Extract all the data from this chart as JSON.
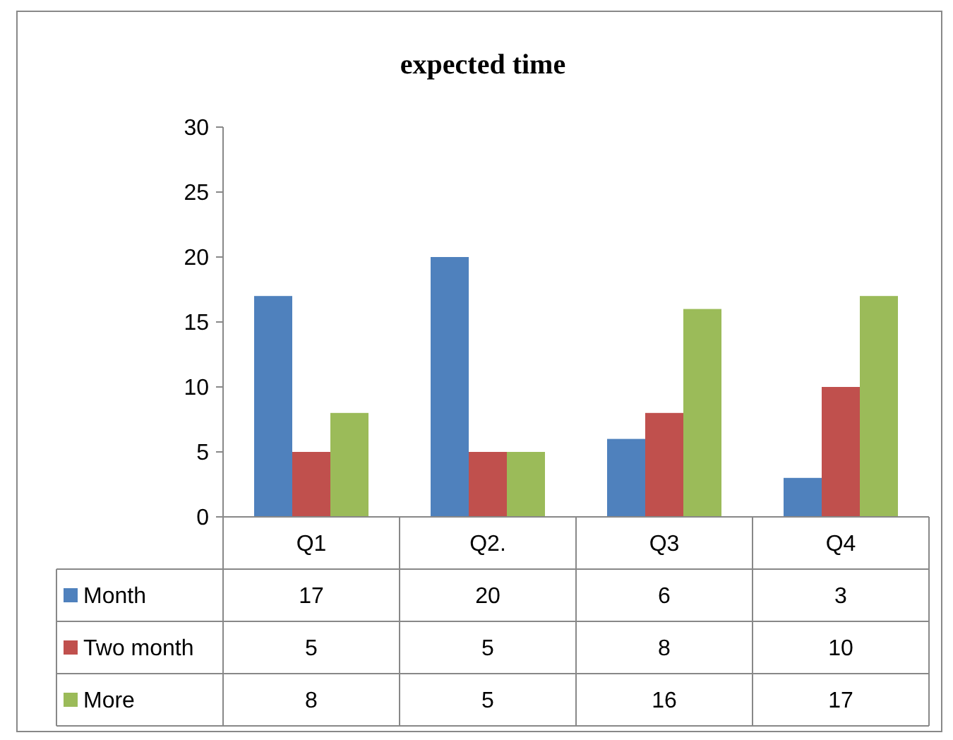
{
  "chart_data": {
    "type": "bar",
    "title": "expected time",
    "categories": [
      "Q1",
      "Q2.",
      "Q3",
      "Q4"
    ],
    "series": [
      {
        "name": "Month",
        "color": "#4f81bd",
        "values": [
          17,
          20,
          6,
          3
        ]
      },
      {
        "name": "Two month",
        "color": "#c0504d",
        "values": [
          5,
          5,
          8,
          10
        ]
      },
      {
        "name": "More",
        "color": "#9bbb59",
        "values": [
          8,
          5,
          16,
          17
        ]
      }
    ],
    "ylim": [
      0,
      30
    ],
    "yticks": [
      0,
      5,
      10,
      15,
      20,
      25,
      30
    ],
    "grid": false,
    "legend": "bottom",
    "data_labels": true
  }
}
